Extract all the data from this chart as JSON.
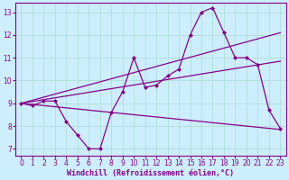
{
  "bg_color": "#cceeff",
  "line_color": "#880088",
  "grid_color": "#aaddcc",
  "xlabel": "Windchill (Refroidissement éolien,°C)",
  "xlim": [
    -0.5,
    23.5
  ],
  "ylim": [
    6.7,
    13.4
  ],
  "yticks": [
    7,
    8,
    9,
    10,
    11,
    12,
    13
  ],
  "xticks": [
    0,
    1,
    2,
    3,
    4,
    5,
    6,
    7,
    8,
    9,
    10,
    11,
    12,
    13,
    14,
    15,
    16,
    17,
    18,
    19,
    20,
    21,
    22,
    23
  ],
  "series1_x": [
    0,
    1,
    2,
    3,
    4,
    5,
    6,
    7,
    8,
    9,
    10,
    11,
    12,
    13,
    14,
    15,
    16,
    17,
    18,
    19,
    20,
    21,
    22,
    23
  ],
  "series1_y": [
    9.0,
    8.9,
    9.1,
    9.1,
    8.2,
    7.6,
    7.0,
    7.0,
    8.6,
    9.5,
    11.0,
    9.7,
    9.8,
    10.2,
    10.5,
    12.0,
    13.0,
    13.2,
    12.1,
    11.0,
    11.0,
    10.7,
    8.7,
    7.9
  ],
  "line2_x": [
    0,
    23
  ],
  "line2_y": [
    9.0,
    7.85
  ],
  "line3_x": [
    0,
    23
  ],
  "line3_y": [
    9.0,
    12.1
  ],
  "line4_x": [
    0,
    23
  ],
  "line4_y": [
    9.0,
    10.85
  ],
  "xlabel_fontsize": 6.0,
  "tick_fontsize": 5.5
}
